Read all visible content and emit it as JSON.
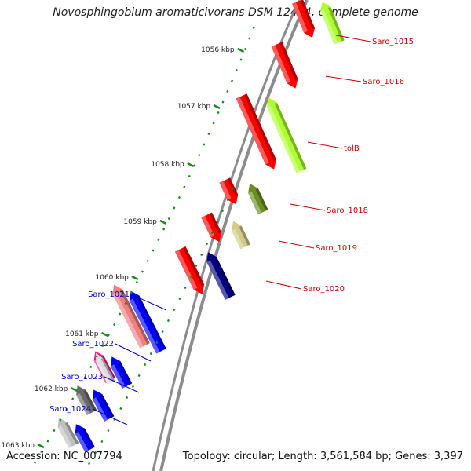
{
  "title": "Novosphingobium aromaticivorans DSM 12444, complete genome",
  "footer": {
    "accession": "Accession: NC_007794",
    "topology": "Topology: circular; Length: 3,561,584 bp; Genes: 3,397"
  },
  "scale": {
    "ticks": [
      "1056 kbp",
      "1057 kbp",
      "1058 kbp",
      "1059 kbp",
      "1060 kbp",
      "1061 kbp",
      "1062 kbp",
      "1063 kbp"
    ]
  },
  "genes": [
    {
      "label": "Saro_1015",
      "strand": "outer",
      "color": "#adff2f",
      "label_color": "#cc0000"
    },
    {
      "label": "Saro_1016",
      "strand": "inner",
      "color": "#ff0000",
      "label_color": "#cc0000"
    },
    {
      "label": "tolB",
      "strand": "outer",
      "color": "#adff2f",
      "label_color": "#cc0000"
    },
    {
      "label": "Saro_1018",
      "strand": "outer",
      "color": "#6b8e23",
      "label_color": "#cc0000"
    },
    {
      "label": "Saro_1019",
      "strand": "outer",
      "color": "#d2c98a",
      "label_color": "#cc0000"
    },
    {
      "label": "Saro_1020",
      "strand": "outer",
      "color": "#000080",
      "label_color": "#cc0000"
    },
    {
      "label": "Saro_1021",
      "strand": "outer",
      "color": "#f08080",
      "label_color": "#0000cc"
    },
    {
      "label": "Saro_1022",
      "strand": "outer",
      "color": "#ff1493",
      "label_color": "#0000cc"
    },
    {
      "label": "Saro_1023",
      "strand": "outer",
      "color": "#696969",
      "label_color": "#0000cc"
    },
    {
      "label": "Saro_1024",
      "strand": "outer",
      "color": "#c0c0c0",
      "label_color": "#0000cc"
    }
  ],
  "colors": {
    "backbone": "#8c8c8c",
    "tick": "#1a8a1a",
    "reverse_strand": "#ff0000",
    "forward_strand_blue": "#0000ff"
  }
}
